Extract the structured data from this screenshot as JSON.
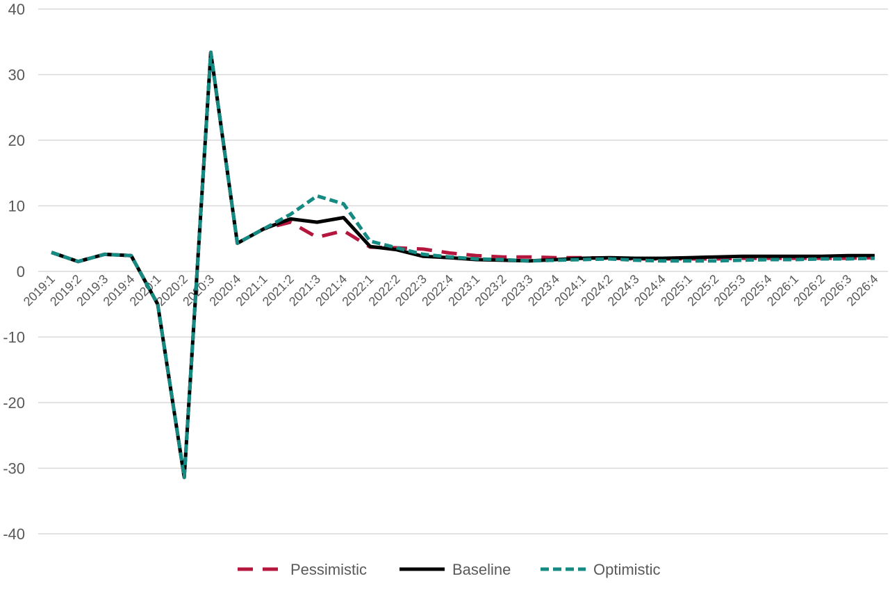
{
  "chart_data": {
    "type": "line",
    "title": "",
    "xlabel": "",
    "ylabel": "",
    "ylim": [
      -40,
      40
    ],
    "yticks": [
      40,
      30,
      20,
      10,
      0,
      -10,
      -20,
      -30,
      -40
    ],
    "grid": true,
    "legend_position": "bottom",
    "x": [
      "2019:1",
      "2019:2",
      "2019:3",
      "2019:4",
      "2020:1",
      "2020:2",
      "2020:3",
      "2020:4",
      "2021:1",
      "2021:2",
      "2021:3",
      "2021:4",
      "2022:1",
      "2022:2",
      "2022:3",
      "2022:4",
      "2023:1",
      "2023:2",
      "2023:3",
      "2023:4",
      "2024:1",
      "2024:2",
      "2024:3",
      "2024:4",
      "2025:1",
      "2025:2",
      "2025:3",
      "2025:4",
      "2026:1",
      "2026:2",
      "2026:3",
      "2026:4"
    ],
    "series": [
      {
        "name": "Pessimistic",
        "color": "#b5163d",
        "dash": "long-dash",
        "values": [
          2.9,
          1.5,
          2.6,
          2.4,
          -5.0,
          -31.4,
          33.4,
          4.3,
          6.5,
          7.5,
          5.2,
          6.2,
          3.7,
          3.6,
          3.4,
          2.8,
          2.4,
          2.2,
          2.2,
          2.1,
          2.1,
          2.0,
          1.9,
          1.9,
          1.9,
          1.9,
          2.0,
          2.0,
          2.0,
          2.0,
          2.0,
          2.1
        ]
      },
      {
        "name": "Baseline",
        "color": "#000000",
        "dash": "solid",
        "values": [
          2.9,
          1.5,
          2.6,
          2.4,
          -5.0,
          -31.4,
          33.4,
          4.3,
          6.5,
          8.0,
          7.5,
          8.2,
          3.8,
          3.3,
          2.3,
          2.1,
          1.8,
          1.7,
          1.6,
          1.8,
          2.0,
          2.1,
          2.0,
          2.0,
          2.1,
          2.2,
          2.3,
          2.3,
          2.3,
          2.3,
          2.4,
          2.4
        ]
      },
      {
        "name": "Optimistic",
        "color": "#148a82",
        "dash": "short-dash",
        "values": [
          2.9,
          1.5,
          2.6,
          2.4,
          -5.0,
          -31.4,
          33.4,
          4.3,
          6.5,
          8.7,
          11.5,
          10.3,
          4.6,
          3.6,
          2.6,
          2.2,
          1.9,
          1.8,
          1.6,
          1.7,
          1.8,
          1.9,
          1.7,
          1.6,
          1.6,
          1.6,
          1.7,
          1.8,
          1.8,
          1.9,
          1.9,
          2.0
        ]
      }
    ]
  }
}
